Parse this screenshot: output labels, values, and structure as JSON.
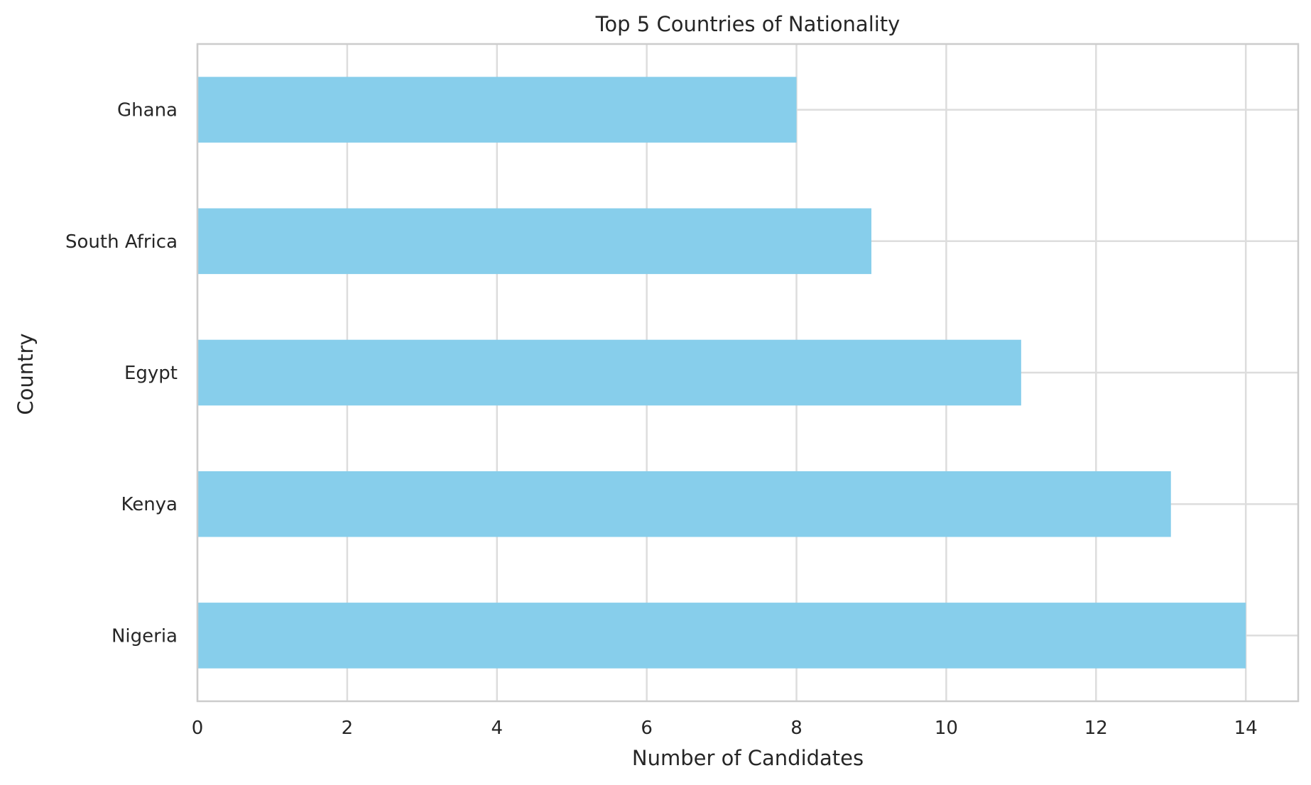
{
  "chart_data": {
    "type": "bar",
    "orientation": "horizontal",
    "title": "Top 5 Countries of Nationality",
    "xlabel": "Number of Candidates",
    "ylabel": "Country",
    "categories": [
      "Nigeria",
      "Kenya",
      "Egypt",
      "South Africa",
      "Ghana"
    ],
    "values": [
      14,
      13,
      11,
      9,
      8
    ],
    "xlim": [
      0,
      14.7
    ],
    "xticks": [
      0,
      2,
      4,
      6,
      8,
      10,
      12,
      14
    ],
    "grid": true,
    "colors": {
      "bar": "#87CEEB",
      "grid": "#dddddd",
      "spine": "#cccccc",
      "text": "#262626"
    }
  }
}
